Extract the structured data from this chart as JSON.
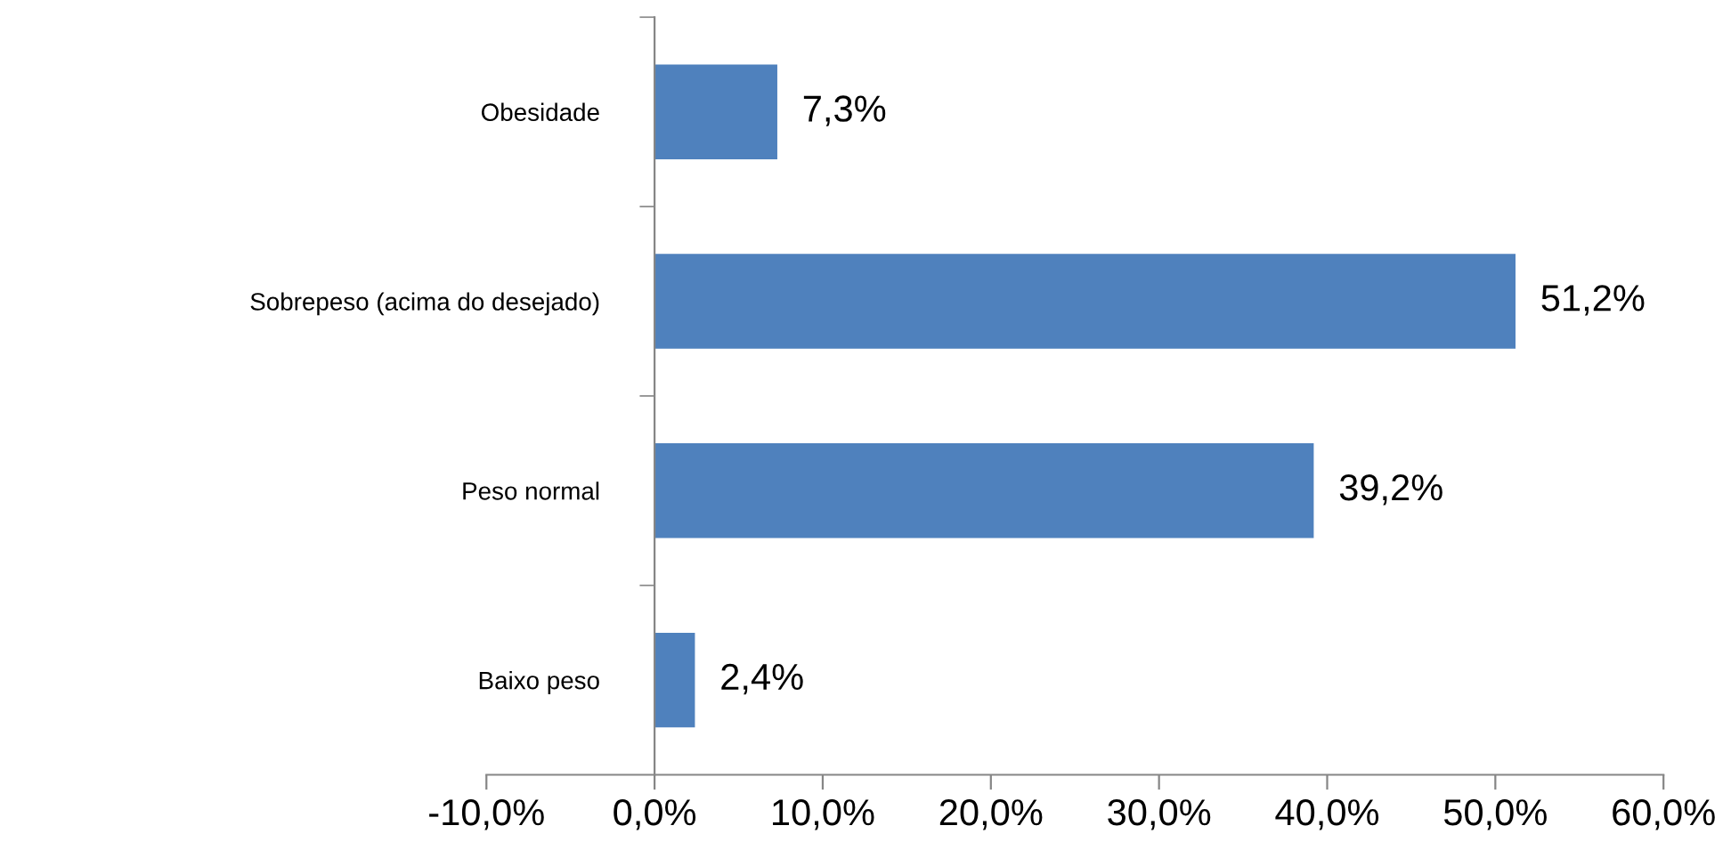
{
  "chart_data": {
    "type": "bar",
    "orientation": "horizontal",
    "categories": [
      "Obesidade",
      "Sobrepeso (acima do desejado)",
      "Peso normal",
      "Baixo peso"
    ],
    "values": [
      7.3,
      51.2,
      39.2,
      2.4
    ],
    "value_labels": [
      "7,3%",
      "51,2%",
      "39,2%",
      "2,4%"
    ],
    "color": "#4f81bd",
    "xlim": [
      -10,
      60
    ],
    "xticks": [
      {
        "value": -10,
        "label": "-10,0%"
      },
      {
        "value": 0,
        "label": "0,0%"
      },
      {
        "value": 10,
        "label": "10,0%"
      },
      {
        "value": 20,
        "label": "20,0%"
      },
      {
        "value": 30,
        "label": "30,0%"
      },
      {
        "value": 40,
        "label": "40,0%"
      },
      {
        "value": 50,
        "label": "50,0%"
      },
      {
        "value": 60,
        "label": "60,0%"
      }
    ],
    "grid": false,
    "legend": false
  }
}
